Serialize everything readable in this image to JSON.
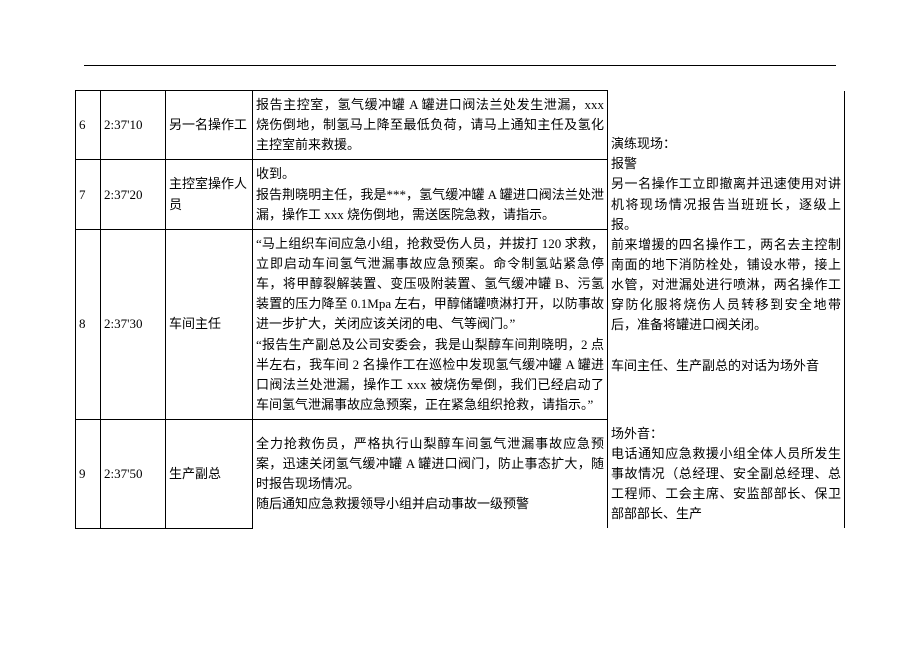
{
  "rows": [
    {
      "idx": "6",
      "time": "2:37'10",
      "role": "另一名操作工",
      "body": "报告主控室，氢气缓冲罐 A 罐进口阀法兰处发生泄漏，xxx 烧伤倒地，制氢马上降至最低负荷，请马上通知主任及氢化主控室前来救援。"
    },
    {
      "idx": "7",
      "time": "2:37'20",
      "role": "主控室操作人员",
      "body": "收到。\n报告荆晓明主任，我是***，氢气缓冲罐 A 罐进口阀法兰处泄漏，操作工 xxx 烧伤倒地，需送医院急救，请指示。"
    },
    {
      "idx": "8",
      "time": "2:37'30",
      "role": "车间主任",
      "body": "“马上组织车间应急小组，抢救受伤人员，并拔打 120 求救，立即启动车间氢气泄漏事故应急预案。命令制氢站紧急停车，将甲醇裂解装置、变压吸附装置、氢气缓冲罐 B、污氢装置的压力降至 0.1Mpa 左右，甲醇储罐喷淋打开，以防事故进一步扩大，关闭应该关闭的电、气等阀门。”\n“报告生产副总及公司安委会，我是山梨醇车间荆晓明，2 点半左右，我车间 2 名操作工在巡检中发现氢气缓冲罐 A 罐进口阀法兰处泄漏，操作工 xxx 被烧伤晕倒，我们已经启动了车间氢气泄漏事故应急预案，正在紧急组织抢救，请指示。”"
    },
    {
      "idx": "9",
      "time": "2:37'50",
      "role": "生产副总",
      "body": "全力抢救伤员，严格执行山梨醇车间氢气泄漏事故应急预案，迅速关闭氢气缓冲罐 A 罐进口阀门，防止事态扩大，随时报告现场情况。\n随后通知应急救援领导小组并启动事故一级预警"
    }
  ],
  "notes": [
    "演练现场：\n报警\n另一名操作工立即撤离并迅速使用对讲机将现场情况报告当班班长，逐级上报。\n前来增援的四名操作工，两名去主控制南面的地下消防栓处，铺设水带，接上水管，对泄漏处进行喷淋，两名操作工穿防化服将烧伤人员转移到安全地带后，准备将罐进口阀关闭。\n\n车间主任、生产副总的对话为场外音",
    "场外音：\n电话通知应急救援小组全体人员所发生事故情况（总经理、安全副总经理、总工程师、工会主席、安监部部长、保卫部部部长、生产"
  ]
}
